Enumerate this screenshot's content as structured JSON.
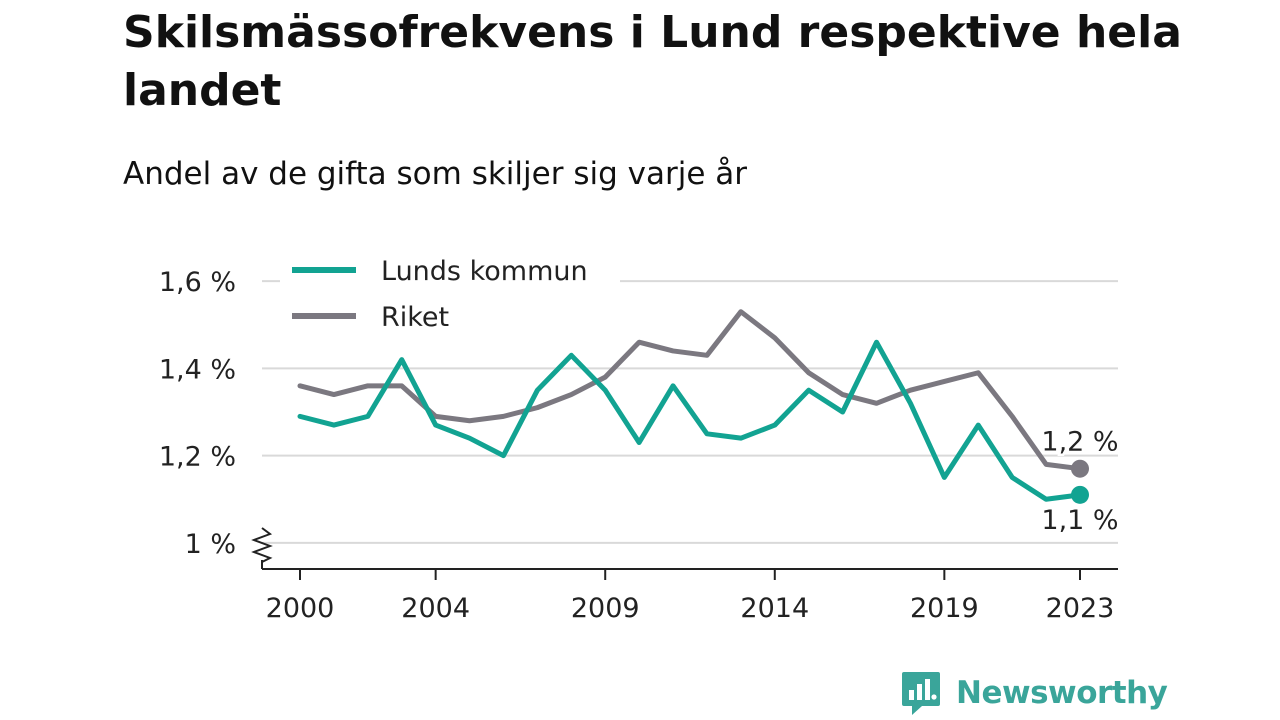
{
  "title": "Skilsmässofrekvens i Lund respektive hela landet",
  "subtitle": "Andel av de gifta som skiljer sig varje år",
  "brand": {
    "name": "Newsworthy",
    "icon": "newsworthy-logo-icon",
    "color": "#3aa59a"
  },
  "chart_data": {
    "type": "line",
    "x": [
      2000,
      2001,
      2002,
      2003,
      2004,
      2005,
      2006,
      2007,
      2008,
      2009,
      2010,
      2011,
      2012,
      2013,
      2014,
      2015,
      2016,
      2017,
      2018,
      2019,
      2020,
      2021,
      2022,
      2023
    ],
    "x_tick_values": [
      2000,
      2004,
      2009,
      2014,
      2019,
      2023
    ],
    "x_tick_labels": [
      "2000",
      "2004",
      "2009",
      "2014",
      "2019",
      "2023"
    ],
    "y_tick_values": [
      1.0,
      1.2,
      1.4,
      1.6
    ],
    "y_tick_labels": [
      "1 %",
      "1,2 %",
      "1,4 %",
      "1,6 %"
    ],
    "ylim": [
      0.94,
      1.66
    ],
    "y_axis_break": true,
    "grid": true,
    "legend_position": "top-left",
    "series": [
      {
        "name": "Lunds kommun",
        "color": "#12a392",
        "values": [
          1.29,
          1.27,
          1.29,
          1.42,
          1.27,
          1.24,
          1.2,
          1.35,
          1.43,
          1.35,
          1.23,
          1.36,
          1.25,
          1.24,
          1.27,
          1.35,
          1.3,
          1.46,
          1.32,
          1.15,
          1.27,
          1.15,
          1.1,
          1.11
        ],
        "end_label": "1,1 %"
      },
      {
        "name": "Riket",
        "color": "#7b7880",
        "values": [
          1.36,
          1.34,
          1.36,
          1.36,
          1.29,
          1.28,
          1.29,
          1.31,
          1.34,
          1.38,
          1.46,
          1.44,
          1.43,
          1.53,
          1.47,
          1.39,
          1.34,
          1.32,
          1.35,
          1.37,
          1.39,
          1.29,
          1.18,
          1.17
        ],
        "end_label": "1,2 %"
      }
    ]
  }
}
